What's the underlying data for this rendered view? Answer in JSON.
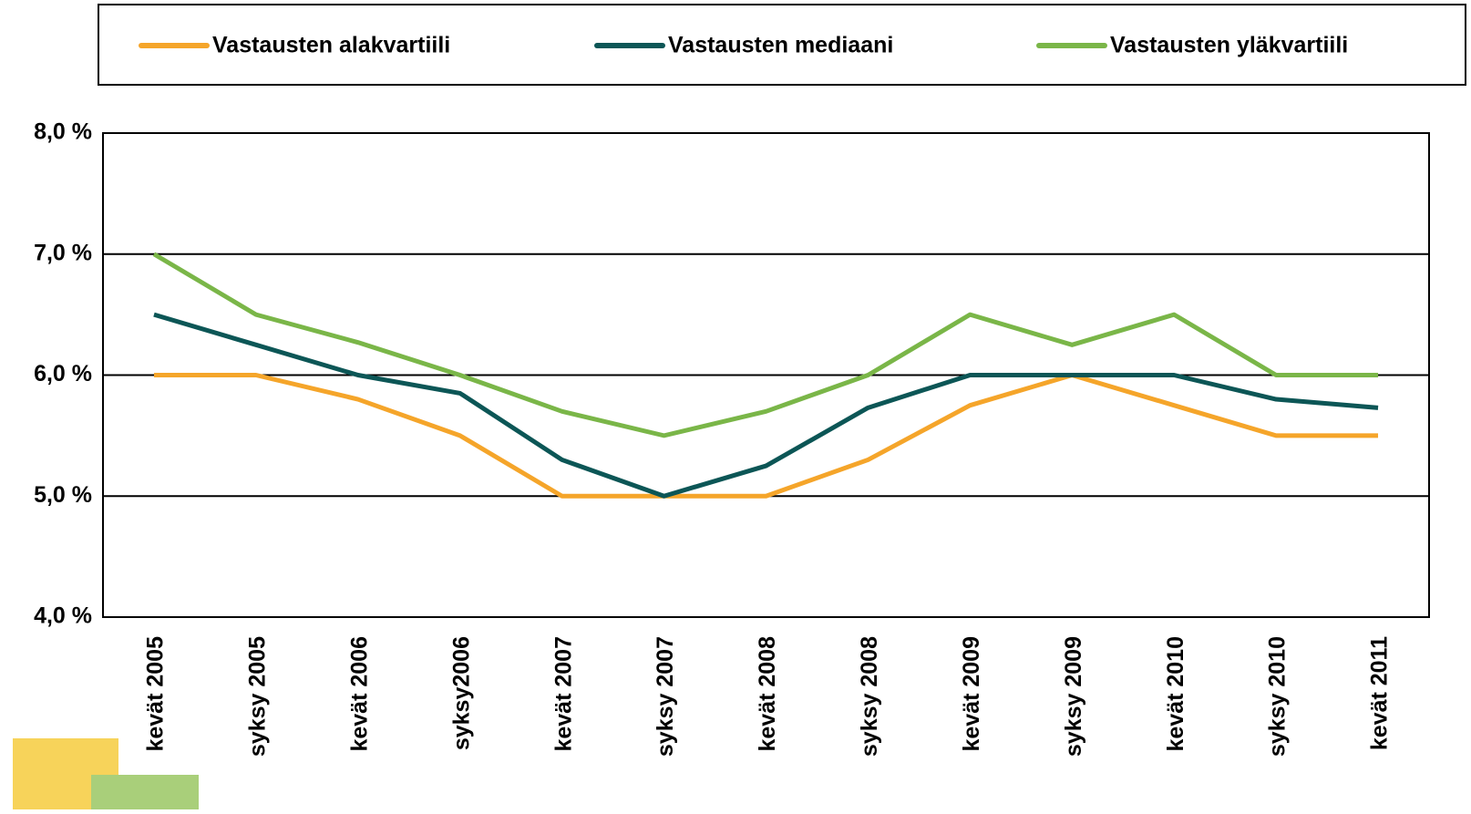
{
  "chart_data": {
    "type": "line",
    "categories": [
      "kevät 2005",
      "syksy 2005",
      "kevät 2006",
      "syksy2006",
      "kevät 2007",
      "syksy 2007",
      "kevät 2008",
      "syksy 2008",
      "kevät 2009",
      "syksy 2009",
      "kevät 2010",
      "syksy 2010",
      "kevät 2011"
    ],
    "series": [
      {
        "name": "Vastausten alakvartiili",
        "color": "#f5a52a",
        "values": [
          6.0,
          6.0,
          5.8,
          5.5,
          5.0,
          5.0,
          5.0,
          5.3,
          5.75,
          6.0,
          5.75,
          5.5,
          5.5
        ]
      },
      {
        "name": "Vastausten mediaani",
        "color": "#0c5656",
        "values": [
          6.5,
          6.25,
          6.0,
          5.85,
          5.3,
          5.0,
          5.25,
          5.73,
          6.0,
          6.0,
          6.0,
          5.8,
          5.73
        ]
      },
      {
        "name": "Vastausten yläkvartiili",
        "color": "#7ab648",
        "values": [
          7.0,
          6.5,
          6.27,
          6.0,
          5.7,
          5.5,
          5.7,
          6.0,
          6.5,
          6.25,
          6.5,
          6.0,
          6.0
        ]
      }
    ],
    "ylim": [
      4,
      8
    ],
    "yticks": [
      {
        "value": 4,
        "label": "4,0 %"
      },
      {
        "value": 5,
        "label": "5,0 %"
      },
      {
        "value": 6,
        "label": "6,0 %"
      },
      {
        "value": 7,
        "label": "7,0 %"
      },
      {
        "value": 8,
        "label": "8,0 %"
      }
    ],
    "grid": true
  }
}
